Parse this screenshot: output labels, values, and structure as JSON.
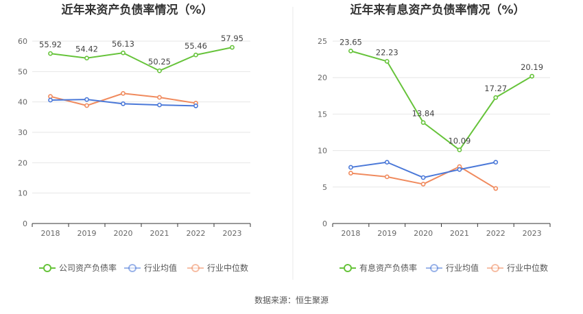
{
  "source": "数据来源：恒生聚源",
  "chart_data": [
    {
      "type": "line",
      "title": "近年来资产负债率情况（%）",
      "categories": [
        "2018",
        "2019",
        "2020",
        "2021",
        "2022",
        "2023"
      ],
      "ylim": [
        0,
        60
      ],
      "yticks": [
        0,
        10,
        20,
        30,
        40,
        50,
        60
      ],
      "grid": true,
      "legend_position": "bottom",
      "series": [
        {
          "name": "公司资产负债率",
          "color": "#66c33a",
          "values": [
            55.92,
            54.42,
            56.13,
            50.25,
            55.46,
            57.95
          ],
          "labels": [
            "55.92",
            "54.42",
            "56.13",
            "50.25",
            "55.46",
            "57.95"
          ]
        },
        {
          "name": "行业均值",
          "color": "#4a78d8",
          "values": [
            40.6,
            40.8,
            39.4,
            39.0,
            38.7,
            null
          ]
        },
        {
          "name": "行业中位数",
          "color": "#f08a5d",
          "values": [
            41.8,
            38.8,
            42.8,
            41.5,
            39.6,
            null
          ]
        }
      ]
    },
    {
      "type": "line",
      "title": "近年来有息资产负债率情况（%）",
      "categories": [
        "2018",
        "2019",
        "2020",
        "2021",
        "2022",
        "2023"
      ],
      "ylim": [
        0,
        25
      ],
      "yticks": [
        0,
        5,
        10,
        15,
        20,
        25
      ],
      "grid": true,
      "legend_position": "bottom",
      "series": [
        {
          "name": "有息资产负债率",
          "color": "#66c33a",
          "values": [
            23.65,
            22.23,
            13.84,
            10.09,
            17.27,
            20.19
          ],
          "labels": [
            "23.65",
            "22.23",
            "13.84",
            "10.09",
            "17.27",
            "20.19"
          ]
        },
        {
          "name": "行业均值",
          "color": "#4a78d8",
          "values": [
            7.7,
            8.4,
            6.3,
            7.4,
            8.4,
            null
          ]
        },
        {
          "name": "行业中位数",
          "color": "#f08a5d",
          "values": [
            6.9,
            6.4,
            5.4,
            7.8,
            4.8,
            null
          ]
        }
      ]
    }
  ]
}
